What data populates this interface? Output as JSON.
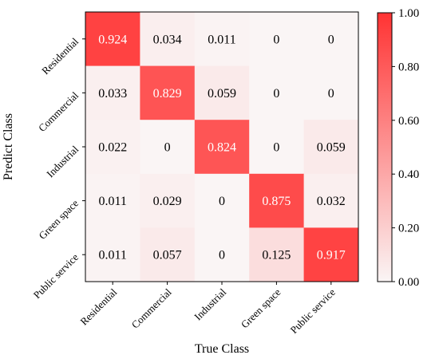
{
  "chart_data": {
    "type": "heatmap",
    "title": "",
    "xlabel": "True Class",
    "ylabel": "Predict Class",
    "x_categories": [
      "Residential",
      "Commercial",
      "Industrial",
      "Green space",
      "Public service"
    ],
    "y_categories": [
      "Residential",
      "Commercial",
      "Industrial",
      "Green space",
      "Public service"
    ],
    "values": [
      [
        0.924,
        0.034,
        0.011,
        0,
        0
      ],
      [
        0.033,
        0.829,
        0.059,
        0,
        0
      ],
      [
        0.022,
        0,
        0.824,
        0,
        0.059
      ],
      [
        0.011,
        0.029,
        0,
        0.875,
        0.032
      ],
      [
        0.011,
        0.057,
        0,
        0.125,
        0.917
      ]
    ],
    "value_labels": [
      [
        "0.924",
        "0.034",
        "0.011",
        "0",
        "0"
      ],
      [
        "0.033",
        "0.829",
        "0.059",
        "0",
        "0"
      ],
      [
        "0.022",
        "0",
        "0.824",
        "0",
        "0.059"
      ],
      [
        "0.011",
        "0.029",
        "0",
        "0.875",
        "0.032"
      ],
      [
        "0.011",
        "0.057",
        "0",
        "0.125",
        "0.917"
      ]
    ],
    "colorbar": {
      "range": [
        0,
        1
      ],
      "ticks": [
        0.0,
        0.2,
        0.4,
        0.6,
        0.8,
        1.0
      ],
      "tick_labels": [
        "0.00",
        "0.20",
        "0.40",
        "0.60",
        "0.80",
        "1.00"
      ],
      "color_low": "#faf5f5",
      "color_high": "#ff3333",
      "placement": "right"
    }
  }
}
